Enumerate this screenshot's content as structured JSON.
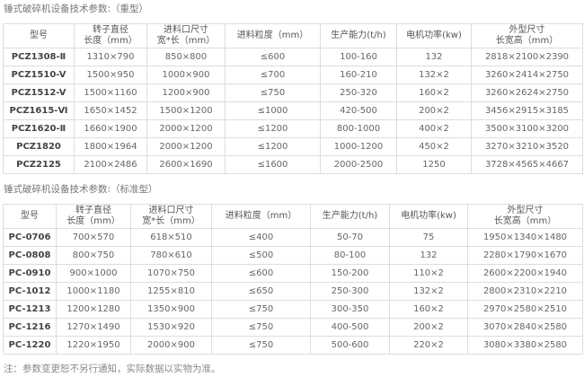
{
  "heavy": {
    "title": "锤式破碎机设备技术参数:（重型）",
    "headers": [
      [
        "型号",
        ""
      ],
      [
        "转子直径",
        "长度（mm）"
      ],
      [
        "进料口尺寸",
        "宽*长（mm）"
      ],
      [
        "进料粒度（mm）",
        ""
      ],
      [
        "生产能力(t/h)",
        ""
      ],
      [
        "电机功率(kw)",
        ""
      ],
      [
        "外型尺寸",
        "长宽高（mm）"
      ]
    ],
    "rows": [
      [
        "PCZ1308-Ⅱ",
        "1310×790",
        "850×800",
        "≤600",
        "100-160",
        "132",
        "2818×2100×2390"
      ],
      [
        "PCZ1510-V",
        "1500×950",
        "1000×900",
        "≤700",
        "160-210",
        "132×2",
        "3260×2414×2750"
      ],
      [
        "PCZ1512-V",
        "1500×1160",
        "1200×900",
        "≤750",
        "250-320",
        "160×2",
        "3260×2624×2750"
      ],
      [
        "PCZ1615-Ⅵ",
        "1650×1452",
        "1500×1200",
        "≤1000",
        "420-500",
        "200×2",
        "3456×2915×3185"
      ],
      [
        "PCZ1620-Ⅱ",
        "1660×1900",
        "2000×1200",
        "≤1200",
        "800-1000",
        "400×2",
        "3500×3100×3200"
      ],
      [
        "PCZ1820",
        "1800×1964",
        "2000×1200",
        "≤1200",
        "1000-1200",
        "450×2",
        "3270×3210×3520"
      ],
      [
        "PCZ2125",
        "2100×2486",
        "2600×1690",
        "≤1600",
        "2000-2500",
        "1250",
        "3728×4565×4667"
      ]
    ]
  },
  "standard": {
    "title": "锤式破碎机设备技术参数:（标准型）",
    "headers": [
      [
        "型号",
        ""
      ],
      [
        "转子直径",
        "长度（mm）"
      ],
      [
        "进料口尺寸",
        "宽*长（mm）"
      ],
      [
        "进料粒度（mm）",
        ""
      ],
      [
        "生产能力(t/h)",
        ""
      ],
      [
        "电机功率(kw)",
        ""
      ],
      [
        "外型尺寸",
        "长宽高（mm）"
      ]
    ],
    "rows": [
      [
        "PC-0706",
        "700×570",
        "618×510",
        "≤400",
        "50-70",
        "75",
        "1950×1340×1480"
      ],
      [
        "PC-0808",
        "800×750",
        "780×610",
        "≤500",
        "80-100",
        "132",
        "2280×1790×1670"
      ],
      [
        "PC-0910",
        "900×1000",
        "1070×750",
        "≤600",
        "150-200",
        "110×2",
        "2600×2200×1940"
      ],
      [
        "PC-1012",
        "1000×1180",
        "1255×810",
        "≤650",
        "250-300",
        "132×2",
        "2800×2310×2210"
      ],
      [
        "PC-1213",
        "1200×1280",
        "1350×900",
        "≤750",
        "300-350",
        "160×2",
        "2970×2580×2510"
      ],
      [
        "PC-1216",
        "1270×1490",
        "1530×920",
        "≤750",
        "400-500",
        "200×2",
        "3070×2840×2580"
      ],
      [
        "PC-1220",
        "1220×1950",
        "2000×900",
        "≤750",
        "500-600",
        "220×2",
        "3080×3380×2580"
      ]
    ]
  },
  "note": "注：参数变更恕不另行通知，实际数据以实物为准。"
}
